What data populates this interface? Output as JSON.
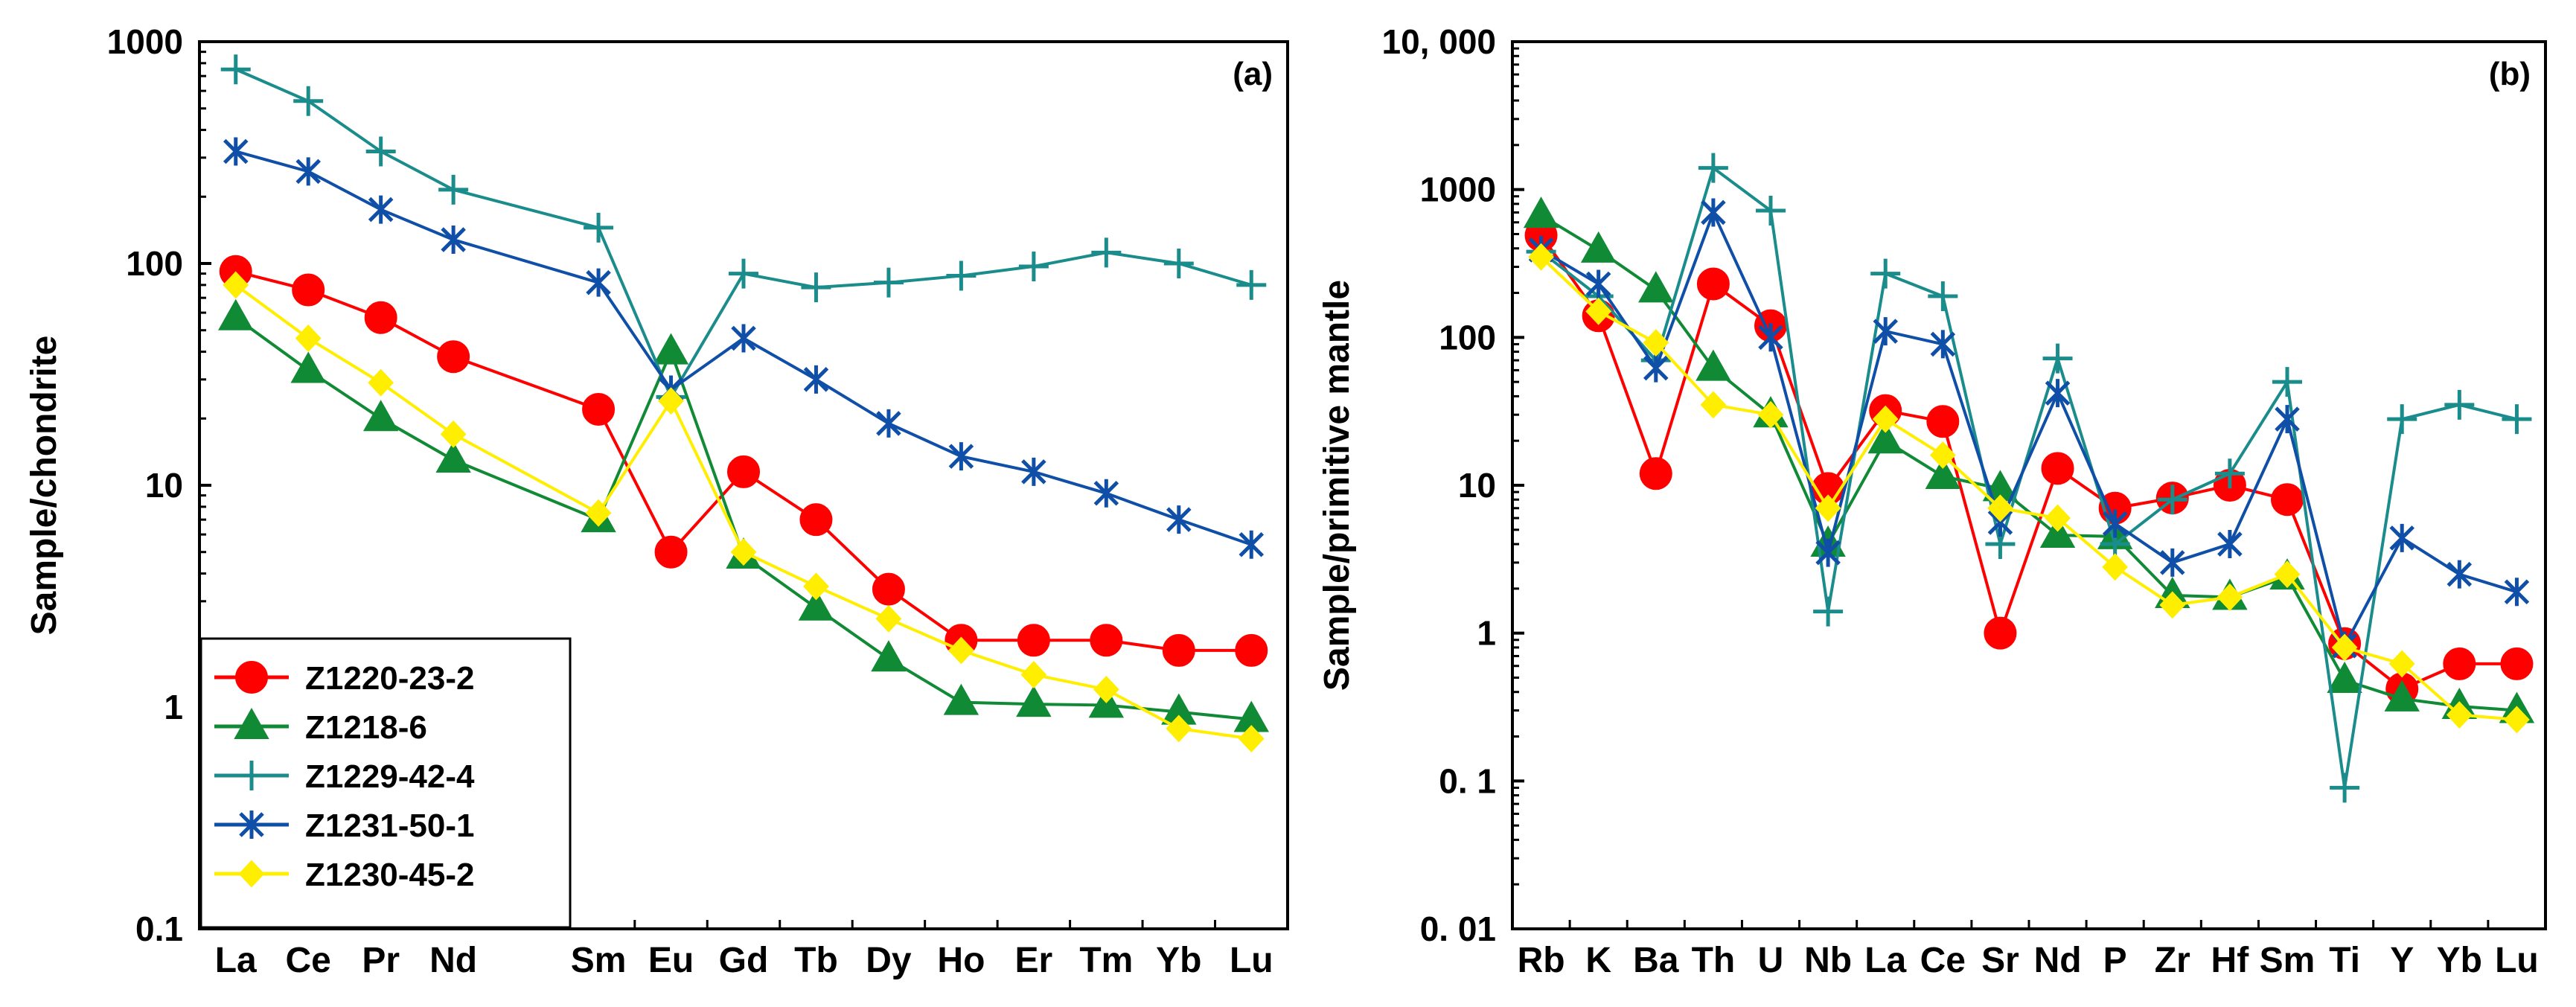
{
  "colors": {
    "Z1220-23-2": "#ff0000",
    "Z1218-6": "#118a36",
    "Z1229-42-4": "#1a8c8c",
    "Z1231-50-1": "#0f4fa8",
    "Z1230-45-2": "#ffee00"
  },
  "chart_data": [
    {
      "type": "line",
      "panel_label": "(a)",
      "ylabel": "Sample/chondrite",
      "xlabel": "",
      "yscale": "log",
      "ylim": [
        0.1,
        1000
      ],
      "yticks": [
        {
          "value": 0.1,
          "label": "0.1"
        },
        {
          "value": 1,
          "label": "1"
        },
        {
          "value": 10,
          "label": "10"
        },
        {
          "value": 100,
          "label": "100"
        },
        {
          "value": 1000,
          "label": "1000"
        }
      ],
      "categories": [
        "La",
        "Ce",
        "Pr",
        "Nd",
        "Sm",
        "Eu",
        "Gd",
        "Tb",
        "Dy",
        "Ho",
        "Er",
        "Tm",
        "Yb",
        "Lu"
      ],
      "category_slots": [
        0,
        1,
        2,
        3,
        5,
        6,
        7,
        8,
        9,
        10,
        11,
        12,
        13,
        14
      ],
      "slot_count": 15,
      "legend_position": "bottom-left",
      "series": [
        {
          "name": "Z1220-23-2",
          "marker": "circle",
          "values": [
            92,
            76,
            57,
            38,
            22,
            5,
            11.5,
            7,
            3.4,
            2,
            2,
            2,
            1.8,
            1.8
          ]
        },
        {
          "name": "Z1218-6",
          "marker": "triangle",
          "values": [
            57,
            33,
            20,
            13,
            7,
            40,
            4.8,
            2.8,
            1.65,
            1.05,
            1.03,
            1.02,
            0.95,
            0.88
          ]
        },
        {
          "name": "Z1229-42-4",
          "marker": "plus",
          "values": [
            750,
            540,
            320,
            215,
            145,
            25,
            90,
            78,
            82,
            88,
            97,
            112,
            100,
            80
          ]
        },
        {
          "name": "Z1231-50-1",
          "marker": "star",
          "values": [
            320,
            260,
            175,
            128,
            82,
            27,
            46,
            30,
            19,
            13.5,
            11.5,
            9.2,
            7,
            5.4
          ]
        },
        {
          "name": "Z1230-45-2",
          "marker": "diamond",
          "values": [
            80,
            46,
            29,
            17,
            7.5,
            24,
            5,
            3.5,
            2.5,
            1.8,
            1.4,
            1.2,
            0.8,
            0.72
          ]
        }
      ]
    },
    {
      "type": "line",
      "panel_label": "(b)",
      "ylabel": "Sample/primitive mantle",
      "xlabel": "",
      "yscale": "log",
      "ylim": [
        0.01,
        10000
      ],
      "yticks": [
        {
          "value": 0.01,
          "label": "0. 01"
        },
        {
          "value": 0.1,
          "label": "0. 1"
        },
        {
          "value": 1,
          "label": "1"
        },
        {
          "value": 10,
          "label": "10"
        },
        {
          "value": 100,
          "label": "100"
        },
        {
          "value": 1000,
          "label": "1000"
        },
        {
          "value": 10000,
          "label": "10, 000"
        }
      ],
      "categories": [
        "Rb",
        "K",
        "Ba",
        "Th",
        "U",
        "Nb",
        "La",
        "Ce",
        "Sr",
        "Nd",
        "P",
        "Zr",
        "Hf",
        "Sm",
        "Ti",
        "Y",
        "Yb",
        "Lu"
      ],
      "category_slots": [
        0,
        1,
        2,
        3,
        4,
        5,
        6,
        7,
        8,
        9,
        10,
        11,
        12,
        13,
        14,
        15,
        16,
        17
      ],
      "slot_count": 18,
      "series": [
        {
          "name": "Z1220-23-2",
          "marker": "circle",
          "values": [
            490,
            140,
            12,
            230,
            120,
            9.5,
            32,
            27,
            1,
            13,
            7,
            8.2,
            10,
            8,
            0.85,
            0.42,
            0.62,
            0.62
          ]
        },
        {
          "name": "Z1218-6",
          "marker": "triangle",
          "values": [
            670,
            390,
            210,
            62,
            30,
            4,
            20,
            11.5,
            9.5,
            4.6,
            4.5,
            1.8,
            1.75,
            2.4,
            0.48,
            0.36,
            0.32,
            0.3
          ]
        },
        {
          "name": "Z1229-42-4",
          "marker": "plus",
          "values": [
            380,
            190,
            70,
            1400,
            720,
            1.4,
            270,
            190,
            4,
            72,
            4,
            8,
            12,
            50,
            0.09,
            28,
            35,
            28
          ]
        },
        {
          "name": "Z1231-50-1",
          "marker": "star",
          "values": [
            390,
            230,
            62,
            700,
            100,
            3.5,
            110,
            90,
            5.6,
            42,
            5.5,
            3,
            4,
            28,
            0.82,
            4.4,
            2.5,
            1.9
          ]
        },
        {
          "name": "Z1230-45-2",
          "marker": "diamond",
          "values": [
            350,
            150,
            92,
            35,
            30,
            7,
            28,
            16,
            7,
            6,
            2.8,
            1.55,
            1.75,
            2.5,
            0.8,
            0.62,
            0.28,
            0.26
          ]
        }
      ]
    }
  ]
}
